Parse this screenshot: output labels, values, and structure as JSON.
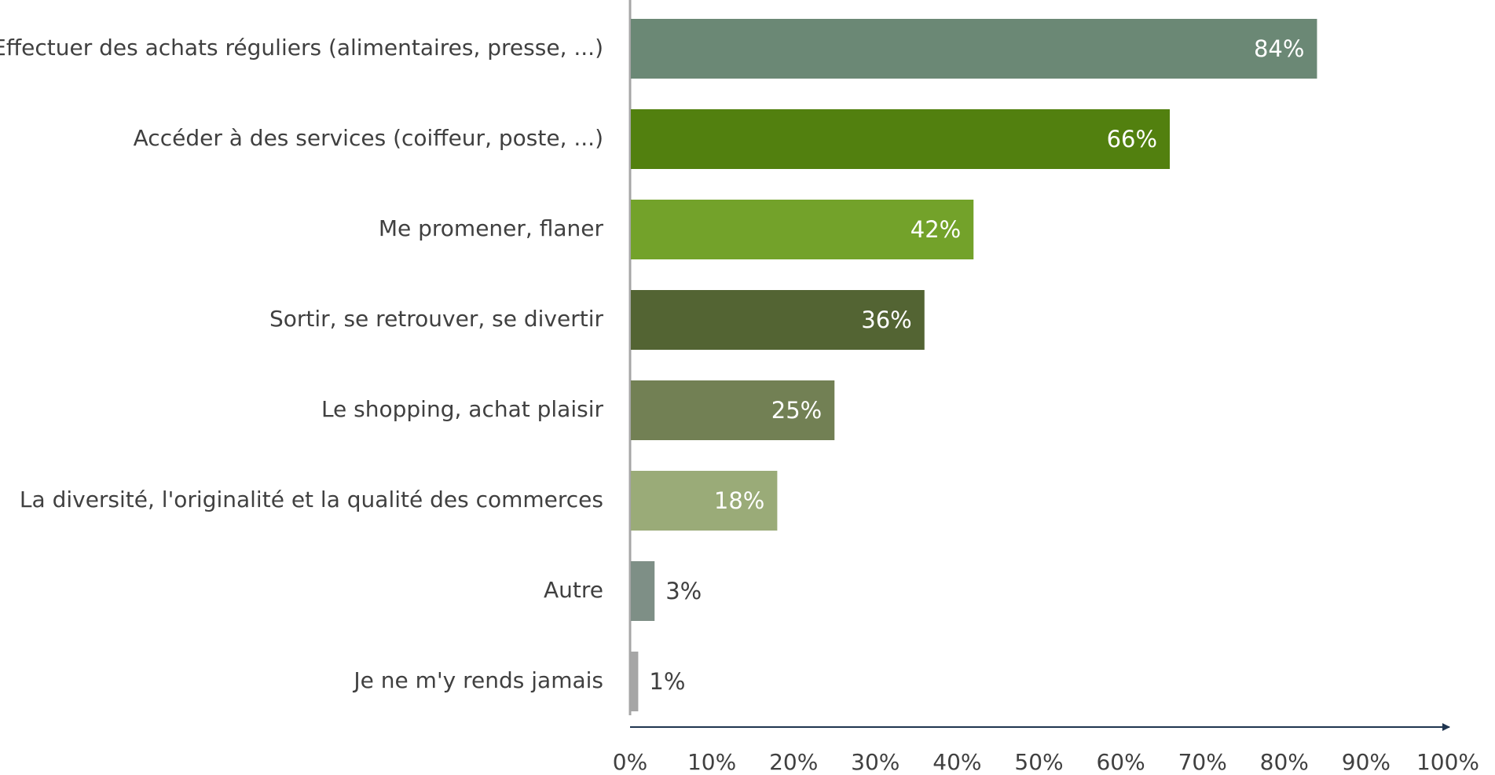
{
  "chart_data": {
    "type": "bar",
    "orientation": "horizontal",
    "categories": [
      "Effectuer des achats réguliers (alimentaires, presse, ...)",
      "Accéder à des services  (coiffeur, poste, ...)",
      "Me promener, flaner",
      "Sortir, se retrouver, se divertir",
      "Le shopping, achat plaisir",
      "La diversité, l'originalité et la qualité des commerces",
      "Autre",
      "Je ne m'y rends jamais"
    ],
    "values": [
      84,
      66,
      42,
      36,
      25,
      18,
      3,
      1
    ],
    "value_labels": [
      "84%",
      "66%",
      "42%",
      "36%",
      "25%",
      "18%",
      "3%",
      "1%"
    ],
    "colors": [
      "#6b8875",
      "#52800f",
      "#73a22a",
      "#536433",
      "#728054",
      "#9aab78",
      "#7e8f86",
      "#a6a6a6"
    ],
    "xlim": [
      0,
      100
    ],
    "xticks": [
      {
        "value": 0,
        "label": "0%"
      },
      {
        "value": 10,
        "label": "10%"
      },
      {
        "value": 20,
        "label": "20%"
      },
      {
        "value": 30,
        "label": "30%"
      },
      {
        "value": 40,
        "label": "40%"
      },
      {
        "value": 50,
        "label": "50%"
      },
      {
        "value": 60,
        "label": "60%"
      },
      {
        "value": 70,
        "label": "70%"
      },
      {
        "value": 80,
        "label": "80%"
      },
      {
        "value": 90,
        "label": "90%"
      },
      {
        "value": 100,
        "label": "100%"
      }
    ]
  }
}
